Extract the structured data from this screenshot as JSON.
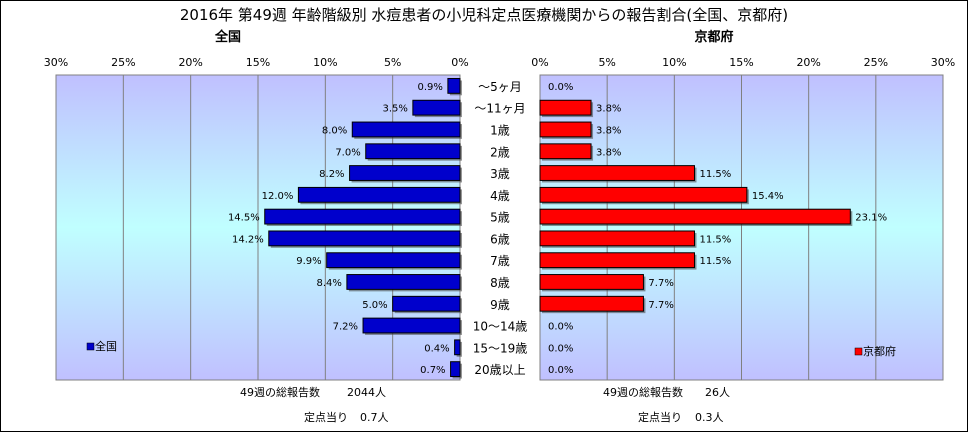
{
  "title": "2016年 第49週 年齢階級別 水痘患者の小児科定点医療機関からの報告割合(全国、京都府)",
  "chart_data": {
    "type": "bar",
    "orientation": "horizontal",
    "categories": [
      "～5ヶ月",
      "～11ヶ月",
      "1歳",
      "2歳",
      "3歳",
      "4歳",
      "5歳",
      "6歳",
      "7歳",
      "8歳",
      "9歳",
      "10～14歳",
      "15～19歳",
      "20歳以上"
    ],
    "panels": [
      {
        "subtitle": "全国",
        "series_name": "全国",
        "color": "#0000cc",
        "direction": "left",
        "values": [
          0.9,
          3.5,
          8.0,
          7.0,
          8.2,
          12.0,
          14.5,
          14.2,
          9.9,
          8.4,
          5.0,
          7.2,
          0.4,
          0.7
        ],
        "value_labels": [
          "0.9%",
          "3.5%",
          "8.0%",
          "7.0%",
          "8.2%",
          "12.0%",
          "14.5%",
          "14.2%",
          "9.9%",
          "8.4%",
          "5.0%",
          "7.2%",
          "0.4%",
          "0.7%"
        ],
        "xlim": [
          0,
          30
        ],
        "ticks": [
          "0%",
          "5%",
          "10%",
          "15%",
          "20%",
          "25%",
          "30%"
        ],
        "legend_position": "left",
        "footer": {
          "reports_label": "49週の総報告数",
          "reports_value": "2044人",
          "per_label": "定点当り",
          "per_value": "0.7人"
        }
      },
      {
        "subtitle": "京都府",
        "series_name": "京都府",
        "color": "#ff0000",
        "direction": "right",
        "values": [
          0.0,
          3.8,
          3.8,
          3.8,
          11.5,
          15.4,
          23.1,
          11.5,
          11.5,
          7.7,
          7.7,
          0.0,
          0.0,
          0.0
        ],
        "value_labels": [
          "0.0%",
          "3.8%",
          "3.8%",
          "3.8%",
          "11.5%",
          "15.4%",
          "23.1%",
          "11.5%",
          "11.5%",
          "7.7%",
          "7.7%",
          "0.0%",
          "0.0%",
          "0.0%"
        ],
        "xlim": [
          0,
          30
        ],
        "ticks": [
          "0%",
          "5%",
          "10%",
          "15%",
          "20%",
          "25%",
          "30%"
        ],
        "legend_position": "right",
        "footer": {
          "reports_label": "49週の総報告数",
          "reports_value": "26人",
          "per_label": "定点当り",
          "per_value": "0.3人"
        }
      }
    ],
    "grid": true,
    "background": [
      "#c0c0ff",
      "#c0ffff"
    ]
  }
}
